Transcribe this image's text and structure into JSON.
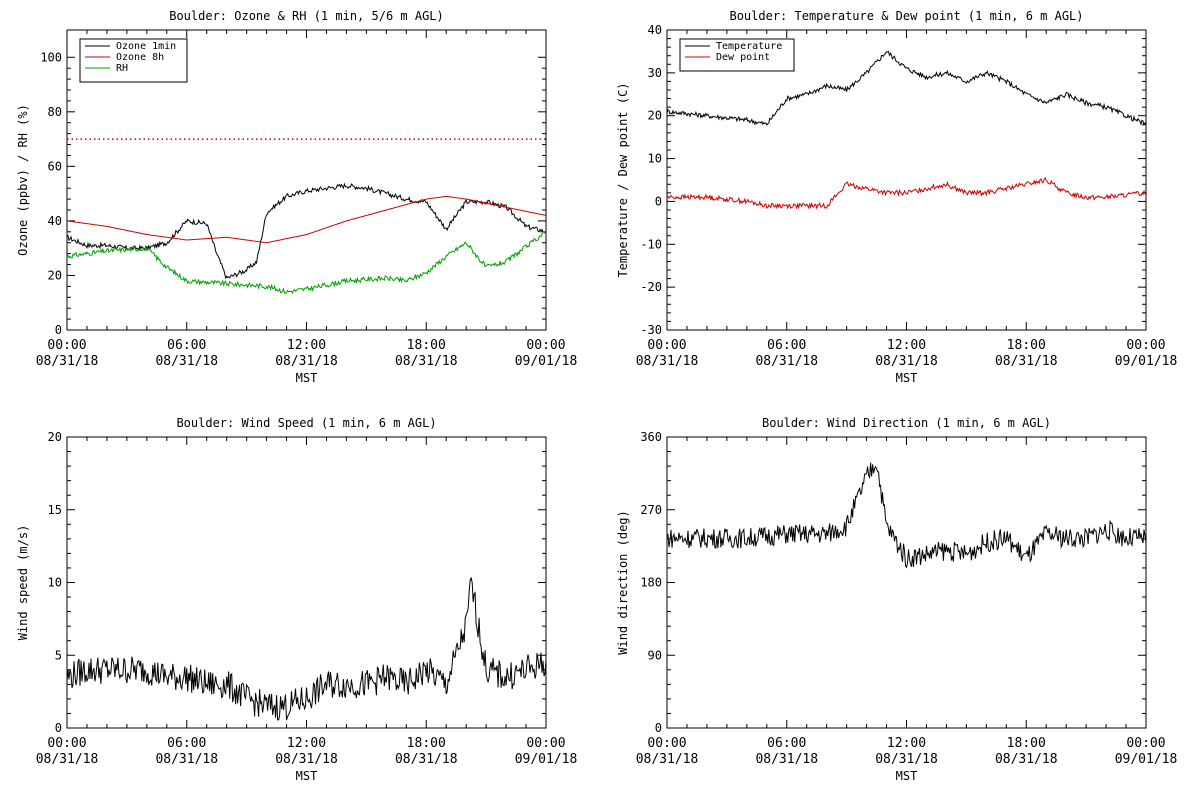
{
  "chart_data": [
    {
      "type": "line",
      "title": "Boulder: Ozone & RH (1 min, 5/6 m AGL)",
      "xlabel": "MST",
      "ylabel": "Ozone (ppbv) / RH (%)",
      "xlim": [
        "08/31/18 00:00",
        "09/01/18 00:00"
      ],
      "ylim": [
        0,
        110
      ],
      "x_ticks": [
        {
          "time": "00:00",
          "date": "08/31/18"
        },
        {
          "time": "06:00",
          "date": "08/31/18"
        },
        {
          "time": "12:00",
          "date": "08/31/18"
        },
        {
          "time": "18:00",
          "date": "08/31/18"
        },
        {
          "time": "00:00",
          "date": "09/01/18"
        }
      ],
      "y_ticks": [
        0,
        20,
        40,
        60,
        80,
        100
      ],
      "legend_position": "top-left",
      "reference_line": {
        "y": 70,
        "style": "dotted",
        "color": "#d00000"
      },
      "series": [
        {
          "name": "Ozone 1min",
          "color": "#000000",
          "x": [
            "00:00",
            "01:00",
            "02:00",
            "03:00",
            "04:00",
            "05:00",
            "05:30",
            "06:00",
            "07:00",
            "07:30",
            "08:00",
            "09:00",
            "09:30",
            "10:00",
            "11:00",
            "12:00",
            "13:00",
            "14:00",
            "15:00",
            "16:00",
            "17:00",
            "18:00",
            "19:00",
            "20:00",
            "21:00",
            "22:00",
            "23:00",
            "24:00"
          ],
          "values": [
            34,
            31,
            31,
            30,
            30,
            32,
            36,
            40,
            39,
            28,
            19,
            22,
            25,
            43,
            49,
            51,
            52,
            53,
            52,
            50,
            48,
            47,
            37,
            47,
            47,
            45,
            38,
            36
          ]
        },
        {
          "name": "Ozone 8h",
          "color": "#d00000",
          "x": [
            "00:00",
            "02:00",
            "04:00",
            "06:00",
            "08:00",
            "10:00",
            "12:00",
            "14:00",
            "16:00",
            "18:00",
            "19:00",
            "20:00",
            "22:00",
            "24:00"
          ],
          "values": [
            40,
            38,
            35,
            33,
            34,
            32,
            35,
            40,
            44,
            48,
            49,
            48,
            45,
            42
          ]
        },
        {
          "name": "RH",
          "color": "#00a000",
          "x": [
            "00:00",
            "02:00",
            "04:00",
            "05:00",
            "06:00",
            "08:00",
            "10:00",
            "11:00",
            "12:00",
            "14:00",
            "16:00",
            "17:00",
            "18:00",
            "19:00",
            "20:00",
            "21:00",
            "22:00",
            "24:00"
          ],
          "values": [
            27,
            29,
            30,
            23,
            18,
            17,
            16,
            14,
            15,
            18,
            19,
            18,
            21,
            27,
            32,
            23,
            25,
            36
          ]
        }
      ]
    },
    {
      "type": "line",
      "title": "Boulder: Temperature & Dew point (1 min, 6 m AGL)",
      "xlabel": "MST",
      "ylabel": "Temperature / Dew point (C)",
      "xlim": [
        "08/31/18 00:00",
        "09/01/18 00:00"
      ],
      "ylim": [
        -30,
        40
      ],
      "x_ticks": [
        {
          "time": "00:00",
          "date": "08/31/18"
        },
        {
          "time": "06:00",
          "date": "08/31/18"
        },
        {
          "time": "12:00",
          "date": "08/31/18"
        },
        {
          "time": "18:00",
          "date": "08/31/18"
        },
        {
          "time": "00:00",
          "date": "09/01/18"
        }
      ],
      "y_ticks": [
        -30,
        -20,
        -10,
        0,
        10,
        20,
        30,
        40
      ],
      "legend_position": "top-left",
      "series": [
        {
          "name": "Temperature",
          "color": "#000000",
          "x": [
            "00:00",
            "02:00",
            "04:00",
            "05:00",
            "06:00",
            "07:00",
            "08:00",
            "09:00",
            "10:00",
            "11:00",
            "12:00",
            "13:00",
            "14:00",
            "15:00",
            "16:00",
            "17:00",
            "18:00",
            "19:00",
            "20:00",
            "21:00",
            "22:00",
            "23:00",
            "24:00"
          ],
          "values": [
            21,
            20,
            19,
            18,
            24,
            25,
            27,
            26,
            30,
            35,
            31,
            29,
            30,
            28,
            30,
            28,
            25,
            23,
            25,
            23,
            22,
            20,
            18
          ]
        },
        {
          "name": "Dew point",
          "color": "#d00000",
          "x": [
            "00:00",
            "02:00",
            "04:00",
            "05:00",
            "06:00",
            "07:00",
            "08:00",
            "09:00",
            "10:00",
            "11:00",
            "12:00",
            "13:00",
            "14:00",
            "15:00",
            "16:00",
            "17:00",
            "18:00",
            "19:00",
            "20:00",
            "21:00",
            "22:00",
            "24:00"
          ],
          "values": [
            1,
            1,
            0,
            -1,
            -1,
            -1,
            -1,
            4,
            3,
            2,
            2,
            3,
            4,
            2,
            2,
            3,
            4,
            5,
            2,
            1,
            1,
            2
          ]
        }
      ]
    },
    {
      "type": "line",
      "title": "Boulder: Wind Speed (1 min, 6 m AGL)",
      "xlabel": "MST",
      "ylabel": "Wind speed (m/s)",
      "xlim": [
        "08/31/18 00:00",
        "09/01/18 00:00"
      ],
      "ylim": [
        0,
        20
      ],
      "x_ticks": [
        {
          "time": "00:00",
          "date": "08/31/18"
        },
        {
          "time": "06:00",
          "date": "08/31/18"
        },
        {
          "time": "12:00",
          "date": "08/31/18"
        },
        {
          "time": "18:00",
          "date": "08/31/18"
        },
        {
          "time": "00:00",
          "date": "09/01/18"
        }
      ],
      "y_ticks": [
        0,
        5,
        10,
        15,
        20
      ],
      "series": [
        {
          "color": "#000000",
          "x": [
            "00:00",
            "01:00",
            "02:00",
            "03:00",
            "04:00",
            "05:00",
            "06:00",
            "07:00",
            "08:00",
            "09:00",
            "10:00",
            "11:00",
            "12:00",
            "13:00",
            "14:00",
            "15:00",
            "16:00",
            "17:00",
            "18:00",
            "19:00",
            "20:00",
            "20:15",
            "21:00",
            "22:00",
            "23:00",
            "24:00"
          ],
          "values": [
            3.5,
            4,
            4,
            4,
            4,
            3.5,
            3.5,
            3,
            3,
            2,
            1.5,
            1.5,
            2,
            3,
            3,
            3,
            3.5,
            3,
            4,
            3,
            7,
            10,
            4,
            3.5,
            4,
            4.5
          ]
        }
      ]
    },
    {
      "type": "line",
      "title": "Boulder: Wind Direction (1 min, 6 m AGL)",
      "xlabel": "MST",
      "ylabel": "Wind direction (deg)",
      "xlim": [
        "08/31/18 00:00",
        "09/01/18 00:00"
      ],
      "ylim": [
        0,
        360
      ],
      "x_ticks": [
        {
          "time": "00:00",
          "date": "08/31/18"
        },
        {
          "time": "06:00",
          "date": "08/31/18"
        },
        {
          "time": "12:00",
          "date": "08/31/18"
        },
        {
          "time": "18:00",
          "date": "08/31/18"
        },
        {
          "time": "00:00",
          "date": "09/01/18"
        }
      ],
      "y_ticks": [
        0,
        90,
        180,
        270,
        360
      ],
      "series": [
        {
          "color": "#000000",
          "x": [
            "00:00",
            "02:00",
            "04:00",
            "06:00",
            "08:00",
            "09:00",
            "10:00",
            "10:30",
            "11:00",
            "12:00",
            "13:00",
            "14:00",
            "15:00",
            "16:00",
            "17:00",
            "18:00",
            "19:00",
            "20:00",
            "21:00",
            "22:00",
            "23:00",
            "24:00"
          ],
          "values": [
            235,
            235,
            235,
            240,
            240,
            250,
            310,
            330,
            250,
            210,
            215,
            220,
            215,
            230,
            235,
            210,
            240,
            235,
            235,
            245,
            235,
            235
          ]
        }
      ]
    }
  ]
}
